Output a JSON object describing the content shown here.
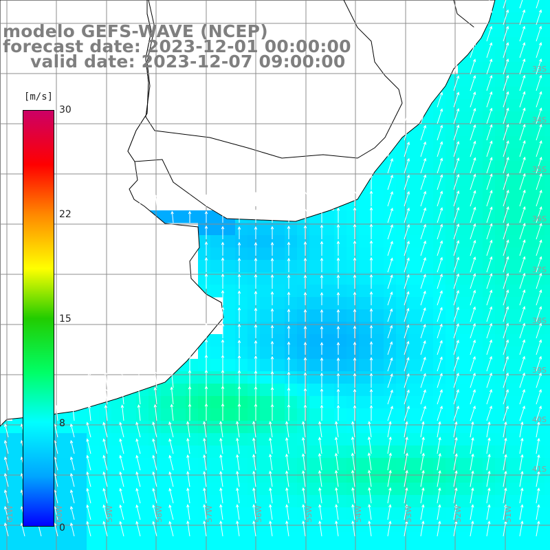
{
  "title": {
    "model": "modelo GEFS-WAVE (NCEP)",
    "forecast": "forecast date: 2023-12-01 00:00:00",
    "valid": "valid date: 2023-12-07 09:00:00"
  },
  "colorbar": {
    "unit": "[m/s]",
    "ticks": [
      "30",
      "22",
      "15",
      "8",
      "0"
    ],
    "tick_values": [
      30,
      22,
      15,
      8,
      0
    ],
    "range": [
      0,
      30
    ],
    "colors": [
      "#0000ff",
      "#00a6ff",
      "#00ffff",
      "#00ff66",
      "#22cc00",
      "#ffff00",
      "#ff8800",
      "#ff0000",
      "#cc0066"
    ]
  },
  "map": {
    "land_color": "#ffffff",
    "coast_color": "#000000",
    "grid_color": "#8c8c8c",
    "arrow_color": "#ffffff",
    "lat_labels": [
      "33S",
      "34S",
      "35S",
      "36S",
      "37S",
      "38S",
      "39S",
      "40S",
      "41S"
    ],
    "lon_labels": [
      "61W",
      "60W",
      "59W",
      "58W",
      "57W",
      "56W",
      "55W",
      "54W",
      "53W",
      "52W",
      "51W"
    ]
  }
}
